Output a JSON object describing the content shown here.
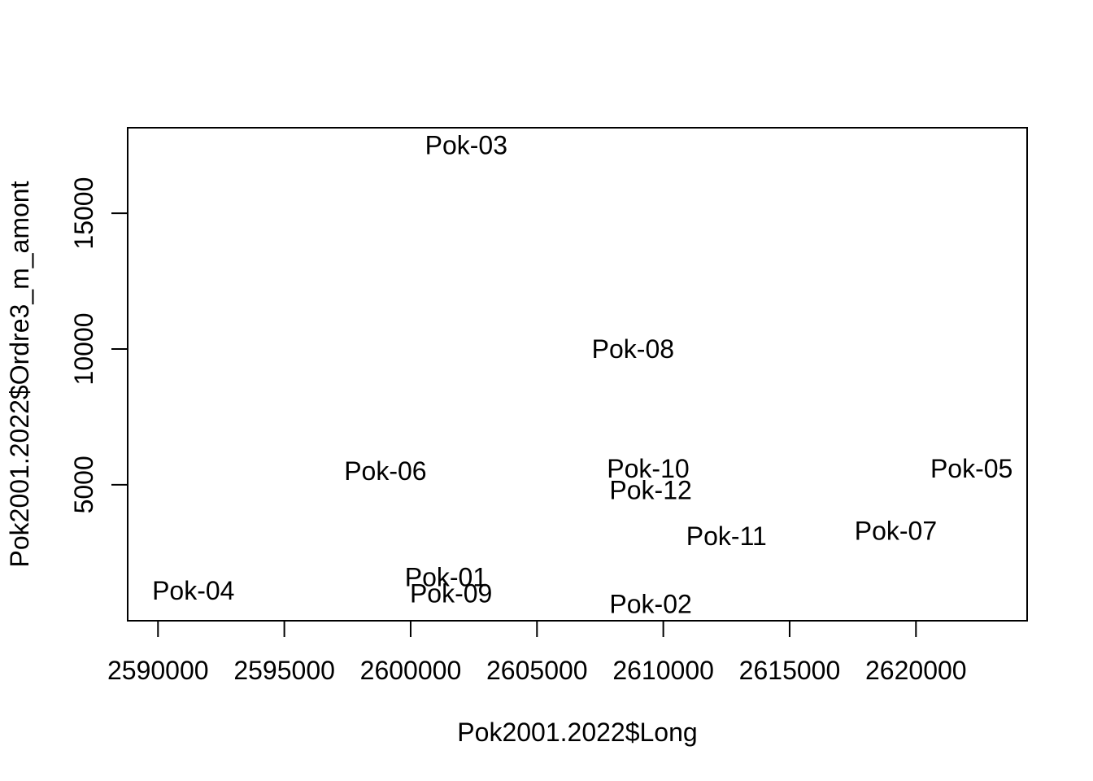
{
  "chart_data": {
    "type": "scatter",
    "xlabel": "Pok2001.2022$Long",
    "ylabel": "Pok2001.2022$Ordre3_m_amont",
    "xlim": [
      2588800,
      2624400
    ],
    "ylim": [
      -10,
      18150
    ],
    "x_ticks": [
      2590000,
      2595000,
      2600000,
      2605000,
      2610000,
      2615000,
      2620000
    ],
    "x_tick_labels": [
      "2590000",
      "2595000",
      "2600000",
      "2605000",
      "2610000",
      "2615000",
      "2620000"
    ],
    "y_ticks": [
      5000,
      10000,
      15000
    ],
    "y_tick_labels": [
      "5000",
      "10000",
      "15000"
    ],
    "points": [
      {
        "label": "Pok-01",
        "x": 2601400,
        "y": 1600
      },
      {
        "label": "Pok-02",
        "x": 2609500,
        "y": 600
      },
      {
        "label": "Pok-03",
        "x": 2602200,
        "y": 17500
      },
      {
        "label": "Pok-04",
        "x": 2591400,
        "y": 1100
      },
      {
        "label": "Pok-05",
        "x": 2622200,
        "y": 5600
      },
      {
        "label": "Pok-06",
        "x": 2599000,
        "y": 5500
      },
      {
        "label": "Pok-07",
        "x": 2619200,
        "y": 3300
      },
      {
        "label": "Pok-08",
        "x": 2608800,
        "y": 10000
      },
      {
        "label": "Pok-09",
        "x": 2601600,
        "y": 1000
      },
      {
        "label": "Pok-10",
        "x": 2609400,
        "y": 5600
      },
      {
        "label": "Pok-11",
        "x": 2612500,
        "y": 3100
      },
      {
        "label": "Pok-12",
        "x": 2609500,
        "y": 4800
      }
    ]
  }
}
